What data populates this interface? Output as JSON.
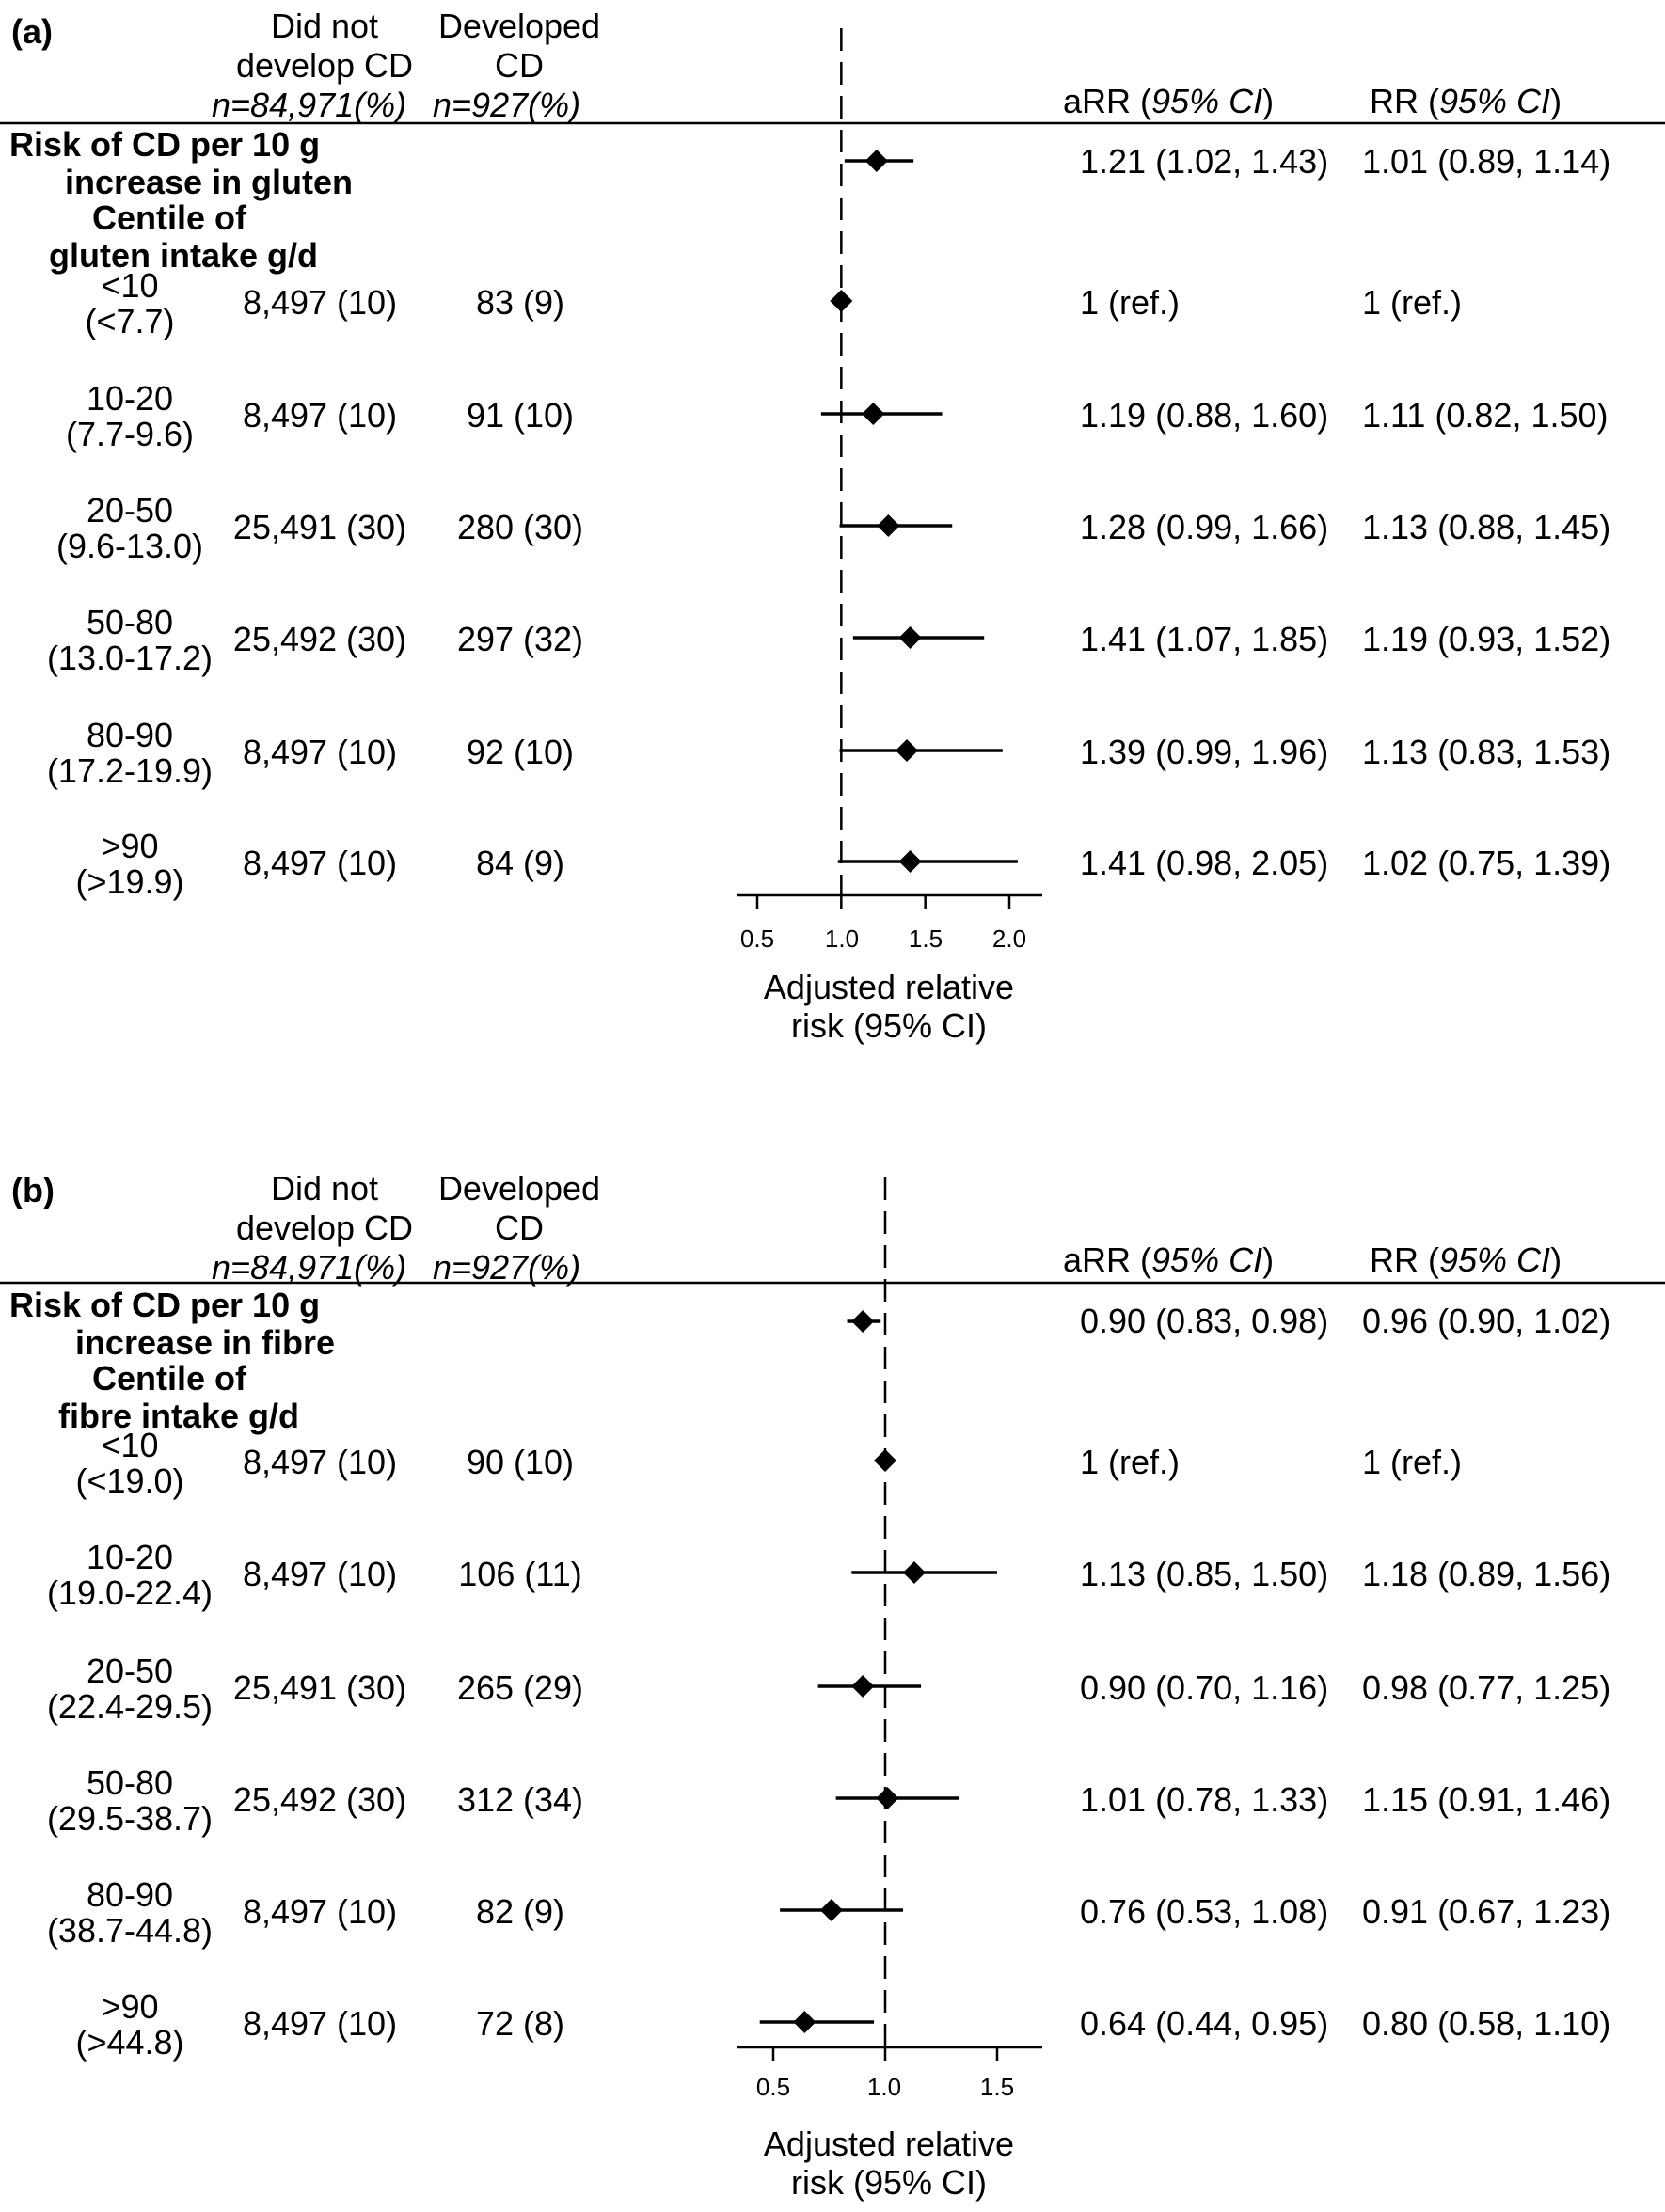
{
  "columns": {
    "did_not_develop_l1": "Did not",
    "did_not_develop_l2": "develop CD",
    "did_not_develop_n": "n=84,971(%)",
    "developed_l1": "Developed",
    "developed_l2": "CD",
    "developed_n": "n=927(%)",
    "arr_label": "aRR",
    "ci_label": "95% CI",
    "rr_label": "RR"
  },
  "panel_a": {
    "label": "(a)",
    "per10_l1": "Risk of CD per 10 g",
    "per10_l2": "increase in gluten",
    "centile_l1": "Centile of",
    "centile_l2": "gluten intake g/d",
    "xlabel_l1": "Adjusted relative",
    "xlabel_l2": "risk (95% CI)",
    "ticks": [
      "0.5",
      "1.0",
      "1.5",
      "2.0"
    ],
    "per10": {
      "arr": "1.21 (1.02, 1.43)",
      "rr": "1.01 (0.89, 1.14)"
    },
    "rows": [
      {
        "centile": "<10",
        "range": "(<7.7)",
        "no_cd": "8,497 (10)",
        "cd": "83 (9)",
        "arr": "1 (ref.)",
        "rr": "1 (ref.)"
      },
      {
        "centile": "10-20",
        "range": "(7.7-9.6)",
        "no_cd": "8,497 (10)",
        "cd": "91 (10)",
        "arr": "1.19 (0.88, 1.60)",
        "rr": "1.11 (0.82, 1.50)"
      },
      {
        "centile": "20-50",
        "range": "(9.6-13.0)",
        "no_cd": "25,491 (30)",
        "cd": "280 (30)",
        "arr": "1.28 (0.99, 1.66)",
        "rr": "1.13 (0.88, 1.45)"
      },
      {
        "centile": "50-80",
        "range": "(13.0-17.2)",
        "no_cd": "25,492 (30)",
        "cd": "297 (32)",
        "arr": "1.41 (1.07, 1.85)",
        "rr": "1.19 (0.93, 1.52)"
      },
      {
        "centile": "80-90",
        "range": "(17.2-19.9)",
        "no_cd": "8,497 (10)",
        "cd": "92 (10)",
        "arr": "1.39 (0.99, 1.96)",
        "rr": "1.13 (0.83, 1.53)"
      },
      {
        "centile": ">90",
        "range": "(>19.9)",
        "no_cd": "8,497 (10)",
        "cd": "84 (9)",
        "arr": "1.41 (0.98, 2.05)",
        "rr": "1.02 (0.75, 1.39)"
      }
    ]
  },
  "panel_b": {
    "label": "(b)",
    "per10_l1": "Risk of CD per 10 g",
    "per10_l2": "increase in fibre",
    "centile_l1": "Centile of",
    "centile_l2": "fibre intake g/d",
    "xlabel_l1": "Adjusted relative",
    "xlabel_l2": "risk (95% CI)",
    "ticks": [
      "0.5",
      "1.0",
      "1.5"
    ],
    "per10": {
      "arr": "0.90 (0.83, 0.98)",
      "rr": "0.96 (0.90, 1.02)"
    },
    "rows": [
      {
        "centile": "<10",
        "range": "(<19.0)",
        "no_cd": "8,497 (10)",
        "cd": "90 (10)",
        "arr": "1 (ref.)",
        "rr": "1 (ref.)"
      },
      {
        "centile": "10-20",
        "range": "(19.0-22.4)",
        "no_cd": "8,497 (10)",
        "cd": "106 (11)",
        "arr": "1.13 (0.85, 1.50)",
        "rr": "1.18 (0.89, 1.56)"
      },
      {
        "centile": "20-50",
        "range": "(22.4-29.5)",
        "no_cd": "25,491 (30)",
        "cd": "265 (29)",
        "arr": "0.90 (0.70, 1.16)",
        "rr": "0.98 (0.77, 1.25)"
      },
      {
        "centile": "50-80",
        "range": "(29.5-38.7)",
        "no_cd": "25,492 (30)",
        "cd": "312 (34)",
        "arr": "1.01 (0.78, 1.33)",
        "rr": "1.15 (0.91, 1.46)"
      },
      {
        "centile": "80-90",
        "range": "(38.7-44.8)",
        "no_cd": "8,497 (10)",
        "cd": "82 (9)",
        "arr": "0.76 (0.53, 1.08)",
        "rr": "0.91 (0.67, 1.23)"
      },
      {
        "centile": ">90",
        "range": "(>44.8)",
        "no_cd": "8,497 (10)",
        "cd": "72 (8)",
        "arr": "0.64 (0.44, 0.95)",
        "rr": "0.80 (0.58, 1.10)"
      }
    ]
  },
  "chart_data": [
    {
      "type": "scatter",
      "xlabel": "Adjusted relative risk (95% CI)",
      "xlim": [
        0.5,
        2.0
      ],
      "xticks": [
        0.5,
        1.0,
        1.5,
        2.0
      ],
      "reference_line": 1.0,
      "points": [
        {
          "label": "Risk of CD per 10 g increase in gluten",
          "est": 1.21,
          "lo": 1.02,
          "hi": 1.43
        },
        {
          "label": "<10",
          "est": 1.0,
          "lo": 1.0,
          "hi": 1.0
        },
        {
          "label": "10-20",
          "est": 1.19,
          "lo": 0.88,
          "hi": 1.6
        },
        {
          "label": "20-50",
          "est": 1.28,
          "lo": 0.99,
          "hi": 1.66
        },
        {
          "label": "50-80",
          "est": 1.41,
          "lo": 1.07,
          "hi": 1.85
        },
        {
          "label": "80-90",
          "est": 1.39,
          "lo": 0.99,
          "hi": 1.96
        },
        {
          "label": ">90",
          "est": 1.41,
          "lo": 0.98,
          "hi": 2.05
        }
      ]
    },
    {
      "type": "scatter",
      "xlabel": "Adjusted relative risk (95% CI)",
      "xlim": [
        0.5,
        1.5
      ],
      "xticks": [
        0.5,
        1.0,
        1.5
      ],
      "reference_line": 1.0,
      "points": [
        {
          "label": "Risk of CD per 10 g increase in fibre",
          "est": 0.9,
          "lo": 0.83,
          "hi": 0.98
        },
        {
          "label": "<10",
          "est": 1.0,
          "lo": 1.0,
          "hi": 1.0
        },
        {
          "label": "10-20",
          "est": 1.13,
          "lo": 0.85,
          "hi": 1.5
        },
        {
          "label": "20-50",
          "est": 0.9,
          "lo": 0.7,
          "hi": 1.16
        },
        {
          "label": "50-80",
          "est": 1.01,
          "lo": 0.78,
          "hi": 1.33
        },
        {
          "label": "80-90",
          "est": 0.76,
          "lo": 0.53,
          "hi": 1.08
        },
        {
          "label": ">90",
          "est": 0.64,
          "lo": 0.44,
          "hi": 0.95
        }
      ]
    }
  ]
}
